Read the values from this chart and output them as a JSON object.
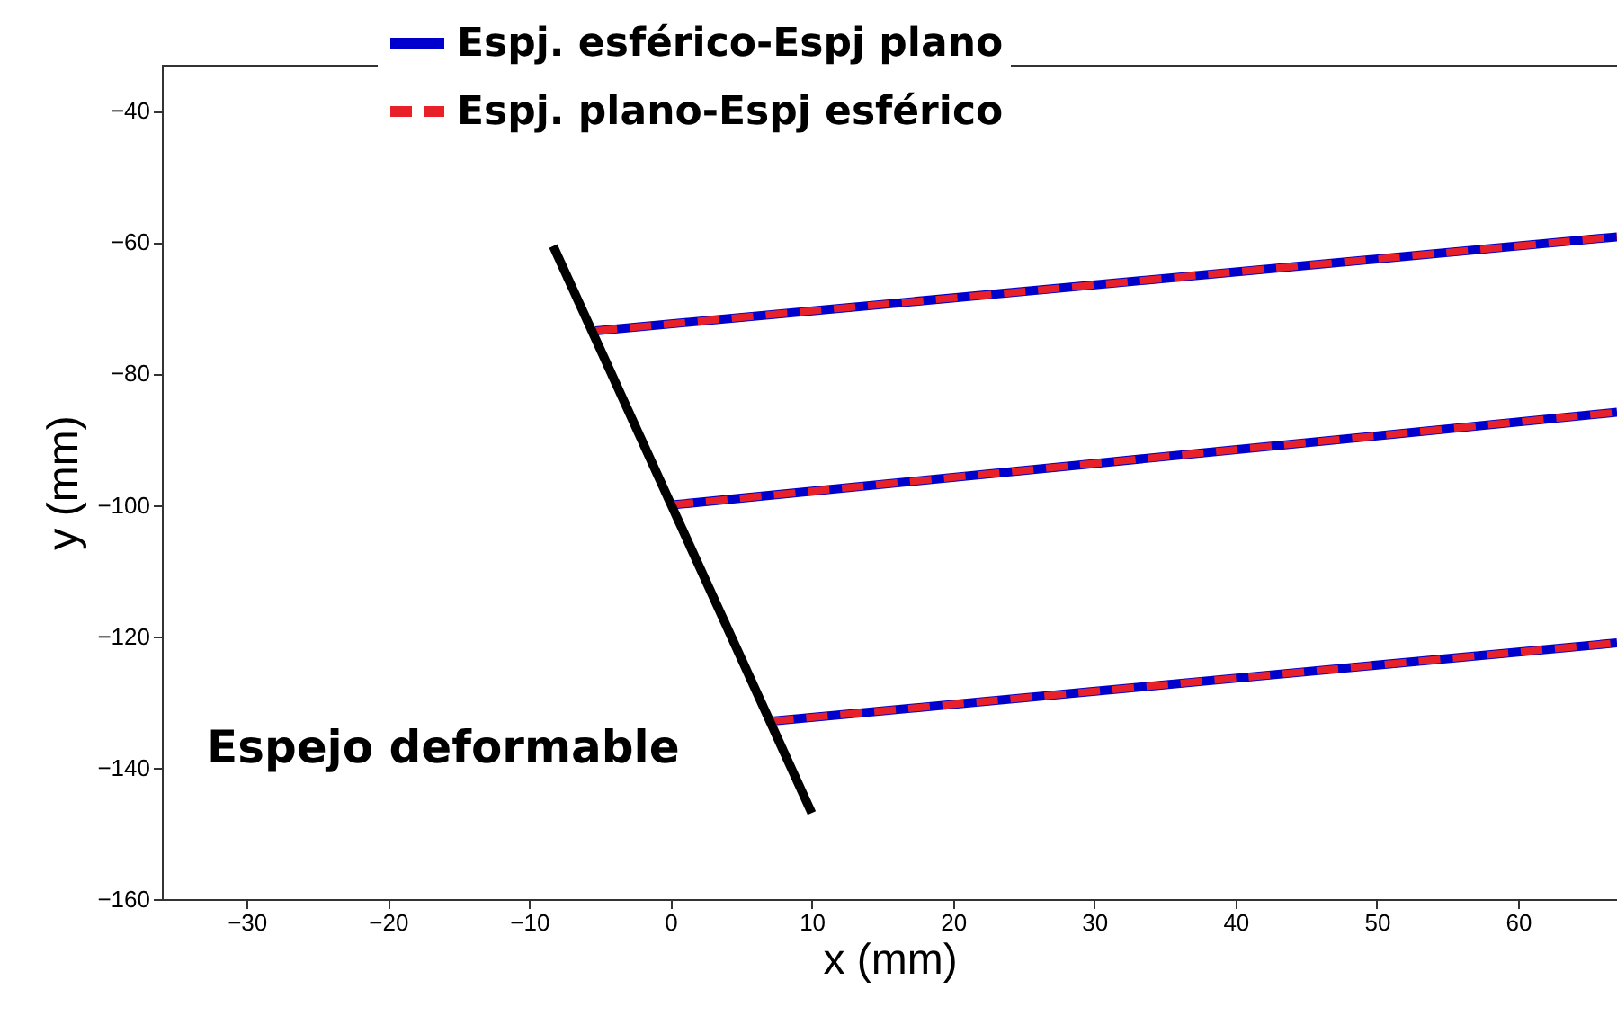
{
  "chart_data": {
    "type": "line",
    "xlabel": "x (mm)",
    "ylabel": "y (mm)",
    "xlim": [
      -36,
      67
    ],
    "xticks": [
      -30,
      -20,
      -10,
      0,
      10,
      20,
      30,
      40,
      50,
      60
    ],
    "ylim": [
      -160,
      -33
    ],
    "yticks": [
      -160,
      -140,
      -120,
      -100,
      -80,
      -60,
      -40
    ],
    "legend": "top",
    "grid": false,
    "series": [
      {
        "name": "Espj. esférico-Espj plano",
        "color": "#0000cc",
        "line_style": "solid",
        "x": [
          -5.3,
          67,
          null,
          0.1,
          67,
          null,
          7.2,
          67
        ],
        "values": [
          -73.5,
          -59.2,
          null,
          -100,
          -85.9,
          null,
          -132.9,
          -121
        ]
      },
      {
        "name": "Espj. plano-Espj esférico",
        "color": "#e8202a",
        "line_style": "dashed",
        "x": [
          -5.3,
          67,
          null,
          0.1,
          67,
          null,
          7.2,
          67
        ],
        "values": [
          -73.5,
          -59.2,
          null,
          -100,
          -85.9,
          null,
          -132.9,
          -121
        ]
      },
      {
        "color": "#000000",
        "line_style": "solid",
        "x": [
          -8.3,
          10
        ],
        "values": [
          -60.6,
          -146.9
        ]
      }
    ],
    "annotations": [
      "Espejo deformable"
    ]
  }
}
